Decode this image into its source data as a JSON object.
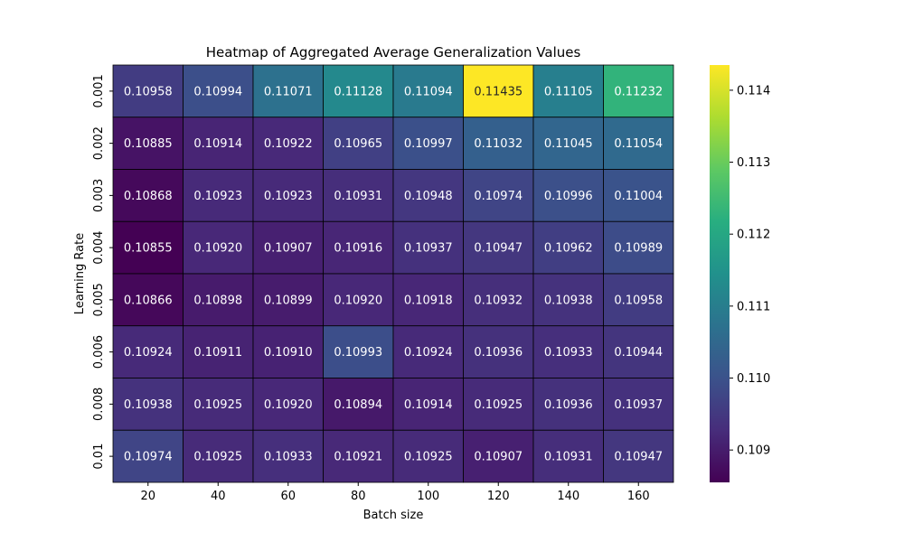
{
  "chart_data": {
    "type": "heatmap",
    "title": "Heatmap of Aggregated Average Generalization Values",
    "xlabel": "Batch size",
    "ylabel": "Learning Rate",
    "x_categories": [
      "20",
      "40",
      "60",
      "80",
      "100",
      "120",
      "140",
      "160"
    ],
    "y_categories": [
      "0.001",
      "0.002",
      "0.003",
      "0.004",
      "0.005",
      "0.006",
      "0.008",
      "0.01"
    ],
    "values": [
      [
        0.10958,
        0.10994,
        0.11071,
        0.11128,
        0.11094,
        0.11435,
        0.11105,
        0.11232
      ],
      [
        0.10885,
        0.10914,
        0.10922,
        0.10965,
        0.10997,
        0.11032,
        0.11045,
        0.11054
      ],
      [
        0.10868,
        0.10923,
        0.10923,
        0.10931,
        0.10948,
        0.10974,
        0.10996,
        0.11004
      ],
      [
        0.10855,
        0.1092,
        0.10907,
        0.10916,
        0.10937,
        0.10947,
        0.10962,
        0.10989
      ],
      [
        0.10866,
        0.10898,
        0.10899,
        0.1092,
        0.10918,
        0.10932,
        0.10938,
        0.10958
      ],
      [
        0.10924,
        0.10911,
        0.1091,
        0.10993,
        0.10924,
        0.10936,
        0.10933,
        0.10944
      ],
      [
        0.10938,
        0.10925,
        0.1092,
        0.10894,
        0.10914,
        0.10925,
        0.10936,
        0.10937
      ],
      [
        0.10974,
        0.10925,
        0.10933,
        0.10921,
        0.10925,
        0.10907,
        0.10931,
        0.10947
      ]
    ],
    "cell_labels": [
      [
        "0.10958",
        "0.10994",
        "0.11071",
        "0.11128",
        "0.11094",
        "0.11435",
        "0.11105",
        "0.11232"
      ],
      [
        "0.10885",
        "0.10914",
        "0.10922",
        "0.10965",
        "0.10997",
        "0.11032",
        "0.11045",
        "0.11054"
      ],
      [
        "0.10868",
        "0.10923",
        "0.10923",
        "0.10931",
        "0.10948",
        "0.10974",
        "0.10996",
        "0.11004"
      ],
      [
        "0.10855",
        "0.10920",
        "0.10907",
        "0.10916",
        "0.10937",
        "0.10947",
        "0.10962",
        "0.10989"
      ],
      [
        "0.10866",
        "0.10898",
        "0.10899",
        "0.10920",
        "0.10918",
        "0.10932",
        "0.10938",
        "0.10958"
      ],
      [
        "0.10924",
        "0.10911",
        "0.10910",
        "0.10993",
        "0.10924",
        "0.10936",
        "0.10933",
        "0.10944"
      ],
      [
        "0.10938",
        "0.10925",
        "0.10920",
        "0.10894",
        "0.10914",
        "0.10925",
        "0.10936",
        "0.10937"
      ],
      [
        "0.10974",
        "0.10925",
        "0.10933",
        "0.10921",
        "0.10925",
        "0.10907",
        "0.10931",
        "0.10947"
      ]
    ],
    "colormap": "viridis",
    "color_range": [
      0.10855,
      0.11435
    ],
    "colorbar_ticks": [
      {
        "value": 0.109,
        "label": "0.109"
      },
      {
        "value": 0.11,
        "label": "0.110"
      },
      {
        "value": 0.111,
        "label": "0.111"
      },
      {
        "value": 0.112,
        "label": "0.112"
      },
      {
        "value": 0.113,
        "label": "0.113"
      },
      {
        "value": 0.114,
        "label": "0.114"
      }
    ],
    "cell_border_color": "#000000",
    "grid": false,
    "legend": "colorbar-right"
  }
}
